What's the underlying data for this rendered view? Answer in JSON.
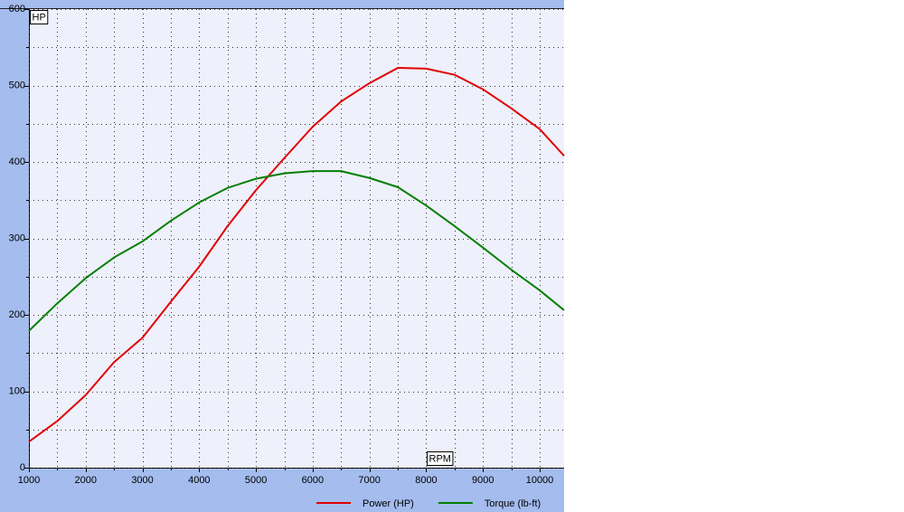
{
  "chart_data": {
    "type": "line",
    "y_label": "HP",
    "x_label": "RPM",
    "x": [
      1000,
      1500,
      2000,
      2500,
      3000,
      3500,
      4000,
      4500,
      5000,
      5500,
      6000,
      6500,
      7000,
      7500,
      8000,
      8500,
      9000,
      9500,
      10000,
      10430
    ],
    "series": [
      {
        "name": "Power (HP)",
        "color": "#e00000",
        "values": [
          34,
          61,
          95,
          138,
          170,
          217,
          263,
          316,
          363,
          405,
          446,
          479,
          503,
          523,
          522,
          514,
          495,
          470,
          443,
          408
        ]
      },
      {
        "name": "Torque (lb-ft)",
        "color": "#008000",
        "values": [
          179,
          215,
          248,
          275,
          296,
          323,
          347,
          366,
          378,
          385,
          388,
          388,
          379,
          367,
          343,
          316,
          288,
          259,
          232,
          206
        ]
      }
    ],
    "xlim": [
      1000,
      10430
    ],
    "ylim": [
      0,
      600
    ],
    "xticks": [
      1000,
      2000,
      3000,
      4000,
      5000,
      6000,
      7000,
      8000,
      9000,
      10000
    ],
    "yticks": [
      0,
      100,
      200,
      300,
      400,
      500,
      600
    ],
    "x_minor_ticks": [
      1500,
      2500,
      3500,
      4500,
      5500,
      6500,
      7500,
      8500,
      9500
    ],
    "y_minor_ticks": [
      50,
      150,
      250,
      350,
      450,
      550
    ],
    "grid": true,
    "legend": "bottom"
  }
}
